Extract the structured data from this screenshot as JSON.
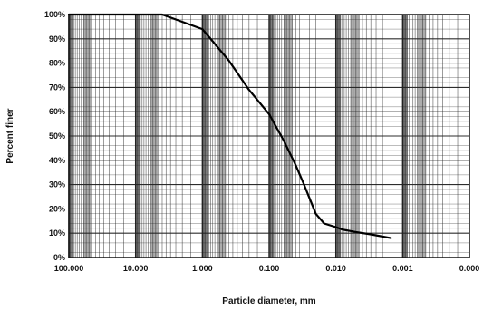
{
  "chart_data": {
    "type": "line",
    "title": "",
    "xlabel": "Particle diameter, mm",
    "ylabel": "Percent finer",
    "x_scale": "log",
    "x_reversed": true,
    "xlim": [
      100,
      0.0001
    ],
    "ylim": [
      0,
      100
    ],
    "x_tick_labels": [
      "100.000",
      "10.000",
      "1.000",
      "0.100",
      "0.010",
      "0.001",
      "0.000"
    ],
    "y_tick_labels": [
      "0%",
      "10%",
      "20%",
      "30%",
      "40%",
      "50%",
      "60%",
      "70%",
      "80%",
      "90%",
      "100%"
    ],
    "grid": true,
    "legend": "none",
    "series": [
      {
        "x": [
          100,
          40,
          10,
          4,
          1,
          0.7,
          0.4,
          0.2,
          0.1,
          0.06,
          0.04,
          0.03,
          0.02,
          0.015,
          0.01,
          0.008,
          0.005,
          0.003,
          0.0015
        ],
        "y": [
          100,
          100,
          100,
          100,
          94,
          89,
          81,
          69,
          59,
          48,
          38,
          30,
          18,
          14,
          12.5,
          11.5,
          10.5,
          9.5,
          8
        ]
      }
    ],
    "colors": {
      "line": "#000000",
      "grid": "#222222",
      "band": "#111111"
    }
  }
}
